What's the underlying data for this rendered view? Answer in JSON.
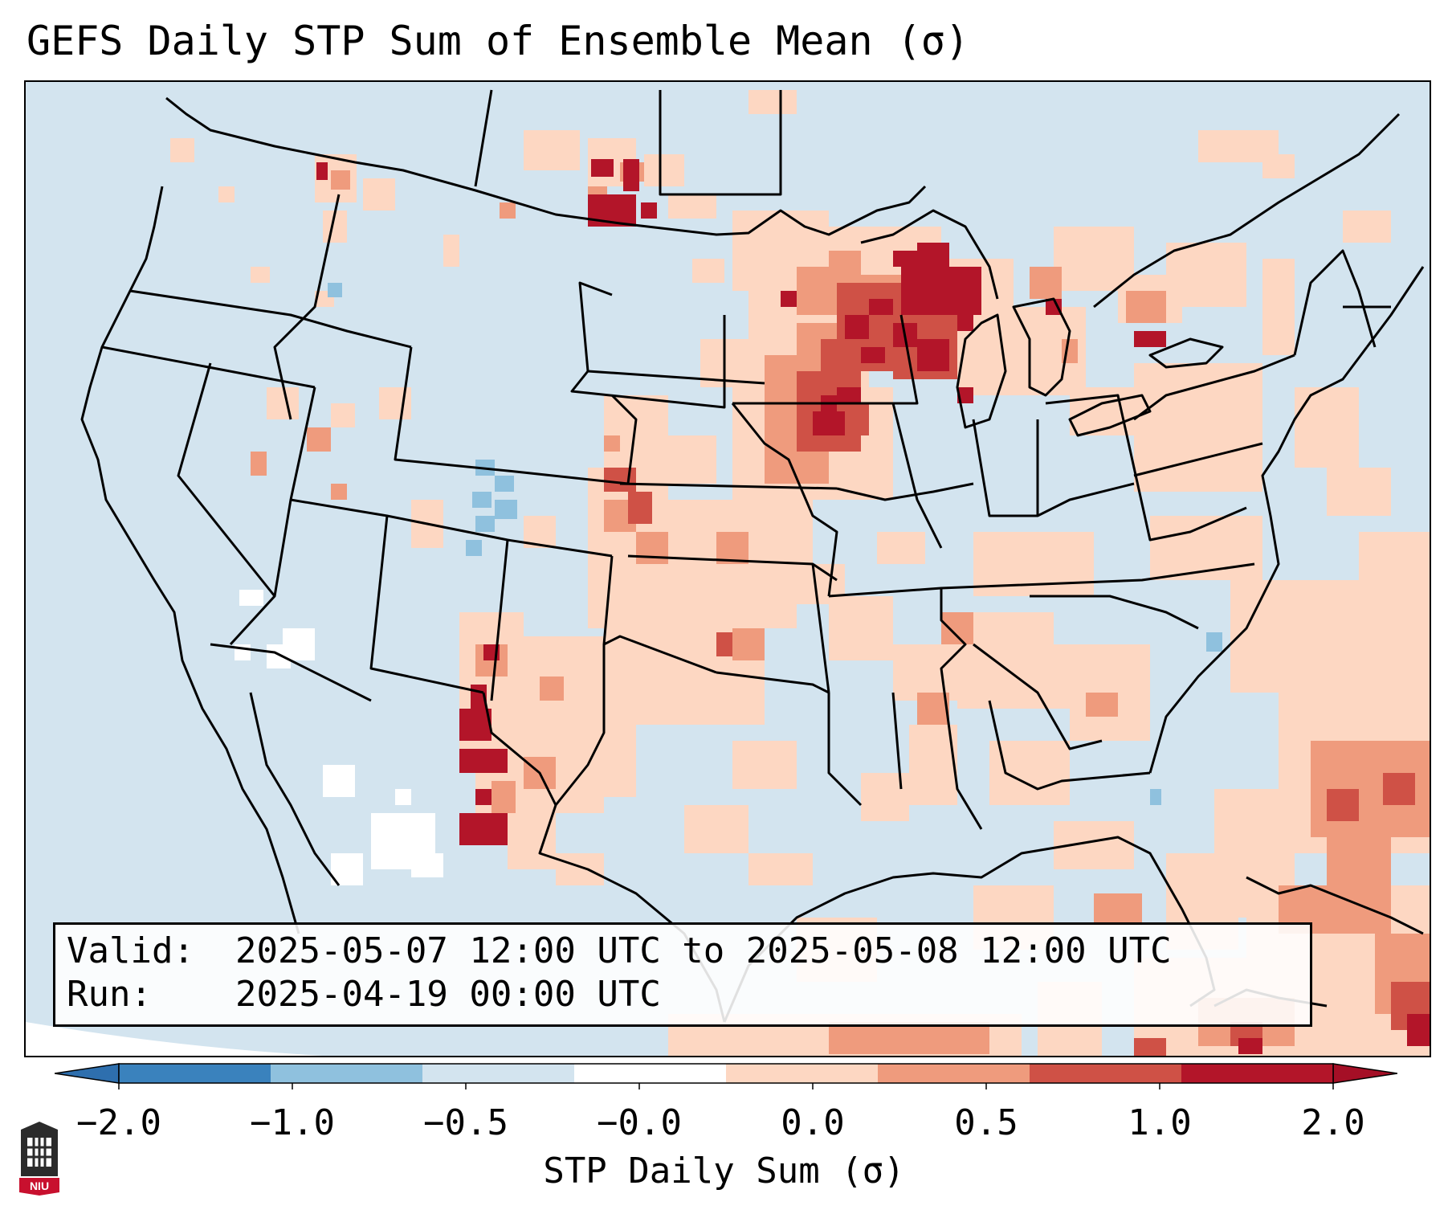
{
  "title": "GEFS Daily STP Sum of Ensemble Mean (σ)",
  "info": {
    "valid_label": "Valid:",
    "valid_value": "2025-05-07 12:00 UTC to 2025-05-08 12:00 UTC",
    "run_label": "Run:",
    "run_value": "2025-04-19 00:00 UTC"
  },
  "colorbar": {
    "label": "STP Daily Sum (σ)",
    "ticks": [
      "−2.0",
      "−1.0",
      "−0.5",
      "−0.0",
      "0.0",
      "0.5",
      "1.0",
      "2.0"
    ],
    "colors": [
      "#3a82bd",
      "#8fc1de",
      "#d3e4ef",
      "#ffffff",
      "#fdd7c2",
      "#ef9b7d",
      "#cf5146",
      "#b31529"
    ],
    "extend_low_color": "#2e6fae",
    "extend_high_color": "#a50f26"
  },
  "map": {
    "background_color": "#d3e4ef",
    "boundary_color": "#000000"
  },
  "logo_text": "NIU"
}
